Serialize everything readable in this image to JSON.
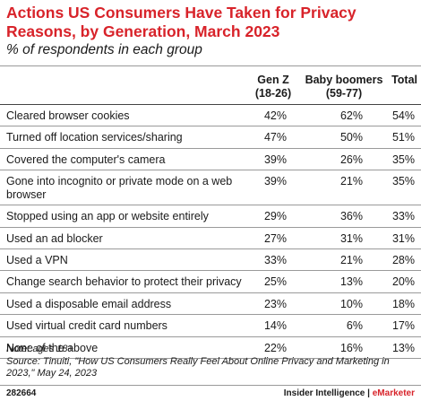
{
  "header": {
    "title": "Actions US Consumers Have Taken for Privacy Reasons, by Generation, March 2023",
    "subtitle": "% of respondents in each group"
  },
  "chart_data": {
    "type": "table",
    "columns": [
      "",
      "Gen Z\n(18-26)",
      "Baby boomers\n(59-77)",
      "Total"
    ],
    "column_labels": {
      "genz_line1": "Gen Z",
      "genz_line2": "(18-26)",
      "boomers_line1": "Baby boomers",
      "boomers_line2": "(59-77)",
      "total": "Total"
    },
    "rows": [
      {
        "label": "Cleared browser cookies",
        "genz": "42%",
        "boomers": "62%",
        "total": "54%"
      },
      {
        "label": "Turned off location services/sharing",
        "genz": "47%",
        "boomers": "50%",
        "total": "51%"
      },
      {
        "label": "Covered the computer's camera",
        "genz": "39%",
        "boomers": "26%",
        "total": "35%"
      },
      {
        "label": "Gone into incognito or private mode on a web browser",
        "genz": "39%",
        "boomers": "21%",
        "total": "35%"
      },
      {
        "label": "Stopped using an app or website entirely",
        "genz": "29%",
        "boomers": "36%",
        "total": "33%"
      },
      {
        "label": "Used an ad blocker",
        "genz": "27%",
        "boomers": "31%",
        "total": "31%"
      },
      {
        "label": "Used a VPN",
        "genz": "33%",
        "boomers": "21%",
        "total": "28%"
      },
      {
        "label": "Change search behavior to protect their privacy",
        "genz": "25%",
        "boomers": "13%",
        "total": "20%"
      },
      {
        "label": "Used a disposable email address",
        "genz": "23%",
        "boomers": "10%",
        "total": "18%"
      },
      {
        "label": "Used virtual credit card numbers",
        "genz": "14%",
        "boomers": "6%",
        "total": "17%"
      },
      {
        "label": "None of the above",
        "genz": "22%",
        "boomers": "16%",
        "total": "13%"
      }
    ]
  },
  "notes": {
    "note": "Note: ages 18+",
    "source": "Source: Tinuiti, \"How US Consumers Really Feel About Online Privacy and Marketing in 2023,\" May 24, 2023"
  },
  "footer": {
    "chart_id": "282664",
    "brand_left": "Insider Intelligence",
    "separator": " | ",
    "brand_right": "eMarketer"
  },
  "colors": {
    "accent": "#d8232a",
    "text": "#1a1a1a",
    "rule": "#9a9a9a"
  }
}
